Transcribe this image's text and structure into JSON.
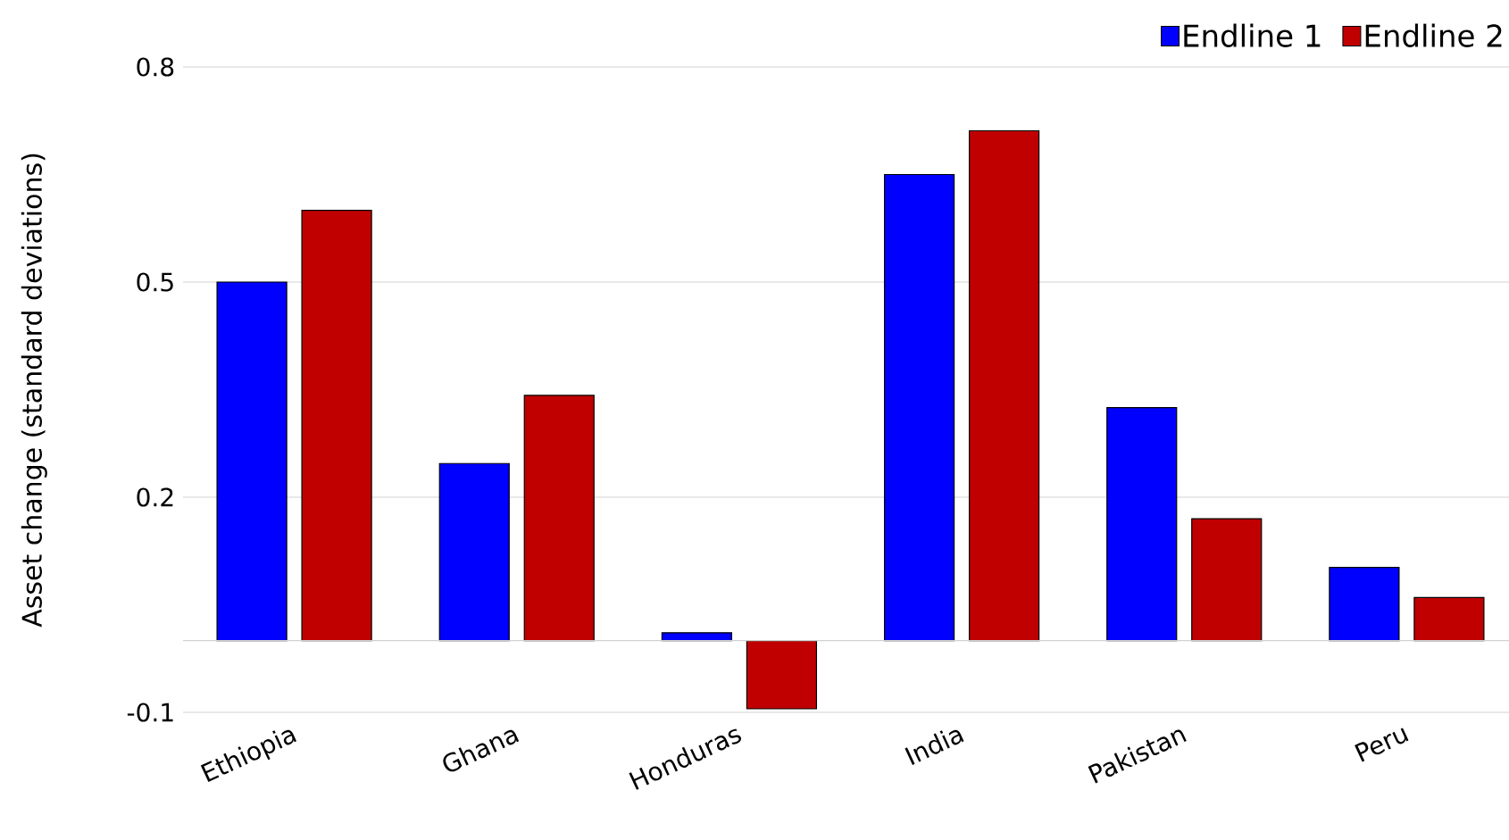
{
  "chart_data": {
    "type": "bar",
    "ylabel": "Asset change (standard deviations)",
    "categories": [
      "Ethiopia",
      "Ghana",
      "Honduras",
      "India",
      "Pakistan",
      "Peru"
    ],
    "series": [
      {
        "name": "Endline 1",
        "color": "#0000ff",
        "values": [
          0.5,
          0.247,
          0.011,
          0.65,
          0.325,
          0.102
        ]
      },
      {
        "name": "Endline 2",
        "color": "#c00000",
        "values": [
          0.6,
          0.342,
          -0.095,
          0.711,
          0.17,
          0.06
        ]
      }
    ],
    "ylim": [
      -0.1,
      0.8
    ],
    "yticks": [
      -0.1,
      0.2,
      0.5,
      0.8
    ],
    "grid": "y",
    "legend": "top right"
  }
}
